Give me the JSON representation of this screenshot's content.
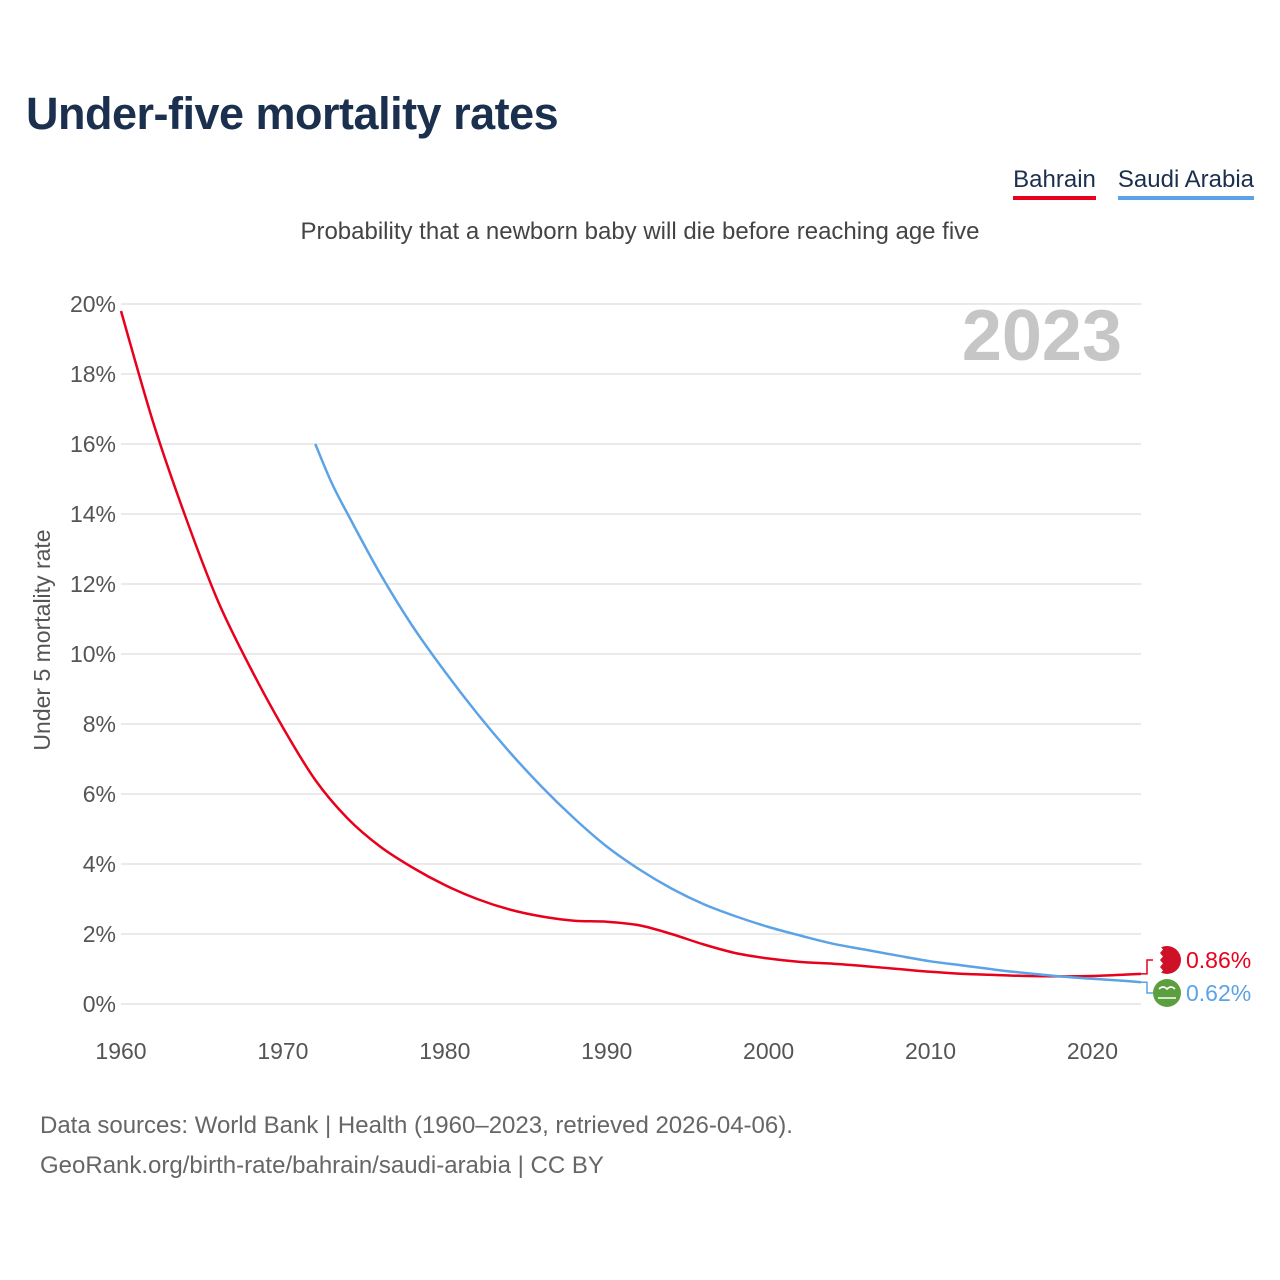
{
  "title": "Under-five mortality rates",
  "subtitle": "Probability that a newborn baby will die before reaching age five",
  "legend": [
    {
      "name": "Bahrain",
      "color": "#e8001c"
    },
    {
      "name": "Saudi Arabia",
      "color": "#5ba3e6"
    }
  ],
  "footer": {
    "line1": "Data sources: World Bank | Health (1960–2023, retrieved 2026-04-06).",
    "line2": "GeoRank.org/birth-rate/bahrain/saudi-arabia | CC BY"
  },
  "chart_data": {
    "type": "line",
    "title": "Under-five mortality rates",
    "subtitle": "Probability that a newborn baby will die before reaching age five",
    "ylabel": "Under 5 mortality rate",
    "xlabel": "",
    "year_watermark": "2023",
    "xlim": [
      1960,
      2023
    ],
    "ylim": [
      0,
      20
    ],
    "x_ticks": [
      1960,
      1970,
      1980,
      1990,
      2000,
      2010,
      2020
    ],
    "y_ticks": [
      0,
      2,
      4,
      6,
      8,
      10,
      12,
      14,
      16,
      18,
      20
    ],
    "y_tick_labels": [
      "0%",
      "2%",
      "4%",
      "6%",
      "8%",
      "10%",
      "12%",
      "14%",
      "16%",
      "18%",
      "20%"
    ],
    "grid": true,
    "series": [
      {
        "name": "Bahrain",
        "color": "#e8001c",
        "end_label": "0.86%",
        "flag": "bahrain-flag",
        "x": [
          1960,
          1962,
          1964,
          1966,
          1968,
          1970,
          1972,
          1974,
          1976,
          1978,
          1980,
          1982,
          1984,
          1986,
          1988,
          1990,
          1992,
          1994,
          1996,
          1998,
          2000,
          2002,
          2004,
          2006,
          2008,
          2010,
          2012,
          2014,
          2016,
          2018,
          2020,
          2022,
          2023
        ],
        "values": [
          19.8,
          16.6,
          13.9,
          11.5,
          9.6,
          7.9,
          6.4,
          5.3,
          4.5,
          3.9,
          3.4,
          3.0,
          2.7,
          2.5,
          2.38,
          2.35,
          2.25,
          2.0,
          1.7,
          1.45,
          1.3,
          1.2,
          1.15,
          1.08,
          1.0,
          0.92,
          0.86,
          0.83,
          0.8,
          0.79,
          0.8,
          0.84,
          0.86
        ]
      },
      {
        "name": "Saudi Arabia",
        "color": "#5ba3e6",
        "end_label": "0.62%",
        "flag": "saudi-arabia-flag",
        "x": [
          1972,
          1973,
          1974,
          1976,
          1978,
          1980,
          1982,
          1984,
          1986,
          1988,
          1990,
          1992,
          1994,
          1996,
          1998,
          2000,
          2002,
          2004,
          2006,
          2008,
          2010,
          2012,
          2014,
          2016,
          2018,
          2020,
          2022,
          2023
        ],
        "values": [
          16.0,
          14.9,
          14.0,
          12.3,
          10.8,
          9.5,
          8.3,
          7.2,
          6.2,
          5.3,
          4.5,
          3.85,
          3.3,
          2.85,
          2.5,
          2.2,
          1.95,
          1.72,
          1.55,
          1.38,
          1.22,
          1.1,
          0.98,
          0.88,
          0.79,
          0.72,
          0.66,
          0.62
        ]
      }
    ]
  }
}
